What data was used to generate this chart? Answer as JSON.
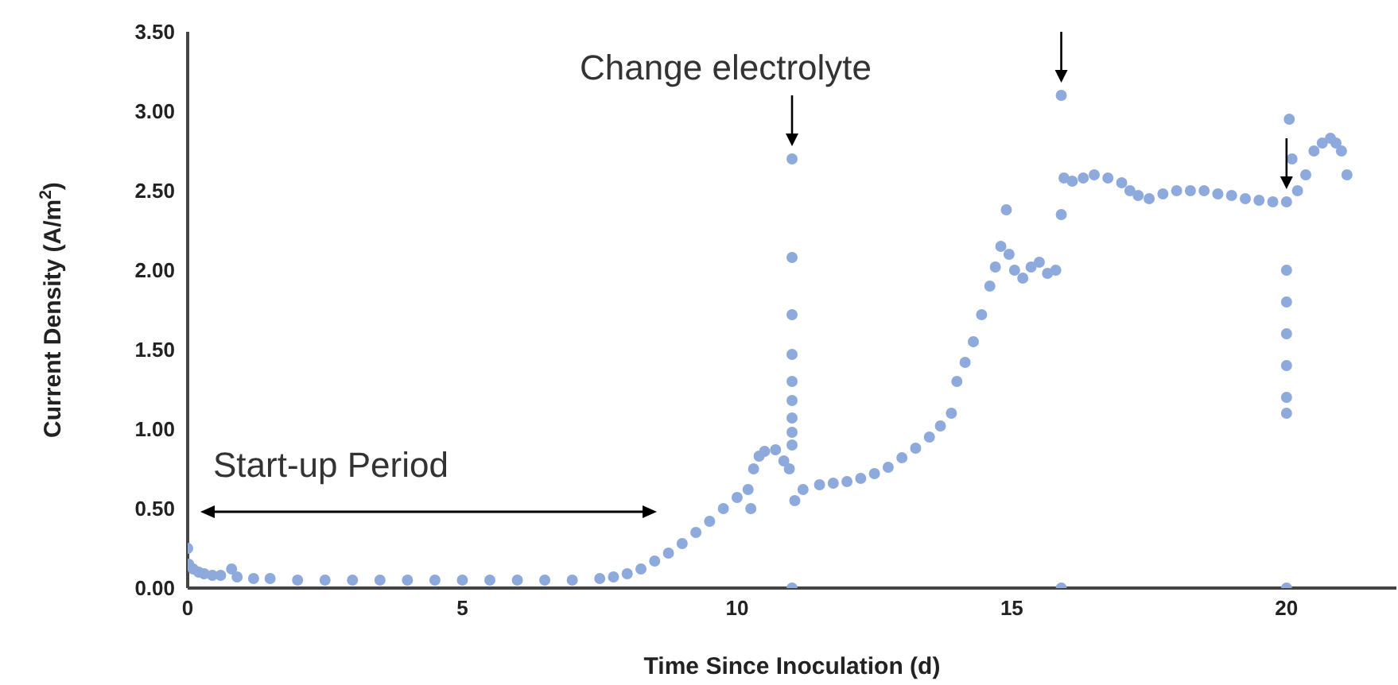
{
  "chart_data": {
    "type": "scatter",
    "xlabel": "Time Since Inoculation (d)",
    "ylabel": "Current Density (A/m$^{2}$)",
    "x": [
      0,
      0.02,
      0.1,
      0.2,
      0.3,
      0.45,
      0.6,
      0.8,
      0.9,
      1.2,
      1.5,
      2,
      2.5,
      3,
      3.5,
      4,
      4.5,
      5,
      5.5,
      6,
      6.5,
      7,
      7.5,
      7.75,
      8,
      8.25,
      8.5,
      8.75,
      9,
      9.25,
      9.5,
      9.75,
      10,
      10.2,
      10.25,
      10.3,
      10.4,
      10.5,
      10.7,
      10.85,
      10.95,
      11,
      11,
      11,
      11,
      11,
      11,
      11,
      11,
      11,
      11,
      11.05,
      11.2,
      11.5,
      11.75,
      12,
      12.25,
      12.5,
      12.75,
      13,
      13.25,
      13.5,
      13.7,
      13.9,
      14,
      14.15,
      14.3,
      14.45,
      14.6,
      14.7,
      14.8,
      14.9,
      14.95,
      15.05,
      15.2,
      15.35,
      15.5,
      15.65,
      15.8,
      15.9,
      15.9,
      15.9,
      15.95,
      16.1,
      16.3,
      16.5,
      16.75,
      17,
      17.15,
      17.3,
      17.5,
      17.75,
      18,
      18.25,
      18.5,
      18.75,
      19,
      19.25,
      19.5,
      19.75,
      20,
      20,
      20,
      20,
      20,
      20,
      20,
      20,
      20.05,
      20.1,
      20.2,
      20.35,
      20.5,
      20.65,
      20.8,
      20.9,
      21,
      21.1
    ],
    "values": [
      0.25,
      0.15,
      0.12,
      0.1,
      0.09,
      0.08,
      0.08,
      0.12,
      0.07,
      0.06,
      0.06,
      0.05,
      0.05,
      0.05,
      0.05,
      0.05,
      0.05,
      0.05,
      0.05,
      0.05,
      0.05,
      0.05,
      0.06,
      0.07,
      0.09,
      0.12,
      0.17,
      0.22,
      0.28,
      0.35,
      0.42,
      0.5,
      0.57,
      0.62,
      0.5,
      0.75,
      0.83,
      0.86,
      0.87,
      0.8,
      0.75,
      2.7,
      2.08,
      1.72,
      1.47,
      1.3,
      1.18,
      1.07,
      0.98,
      0.9,
      0,
      0.55,
      0.62,
      0.65,
      0.66,
      0.67,
      0.69,
      0.72,
      0.76,
      0.82,
      0.88,
      0.95,
      1.02,
      1.1,
      1.3,
      1.42,
      1.55,
      1.72,
      1.9,
      2.02,
      2.15,
      2.38,
      2.1,
      2,
      1.95,
      2.02,
      2.05,
      1.98,
      2,
      3.1,
      0,
      2.35,
      2.58,
      2.56,
      2.58,
      2.6,
      2.58,
      2.55,
      2.5,
      2.47,
      2.45,
      2.48,
      2.5,
      2.5,
      2.5,
      2.48,
      2.47,
      2.45,
      2.44,
      2.43,
      2.43,
      2,
      1.8,
      1.6,
      1.4,
      1.2,
      1.1,
      0,
      2.95,
      2.7,
      2.5,
      2.6,
      2.75,
      2.8,
      2.83,
      2.8,
      2.75,
      2.6
    ],
    "color": "#8eaadc",
    "marker": "circle",
    "xlim": [
      0,
      22
    ],
    "xticks": [
      0,
      5,
      10,
      15,
      20
    ],
    "ylim": [
      0,
      3.5
    ],
    "yticks": [
      {
        "value": 0,
        "label": "0.00"
      },
      {
        "value": 0.5,
        "label": "0.50"
      },
      {
        "value": 1,
        "label": "1.00"
      },
      {
        "value": 1.5,
        "label": "1.50"
      },
      {
        "value": 2,
        "label": "2.00"
      },
      {
        "value": 2.5,
        "label": "2.50"
      },
      {
        "value": 3,
        "label": "3.00"
      },
      {
        "value": 3.5,
        "label": "3.50"
      }
    ],
    "annotations": [
      {
        "text": "Change electrolyte",
        "x": 11,
        "y": 2.7
      },
      "Start-up Period"
    ],
    "grid": false,
    "legend": false
  }
}
